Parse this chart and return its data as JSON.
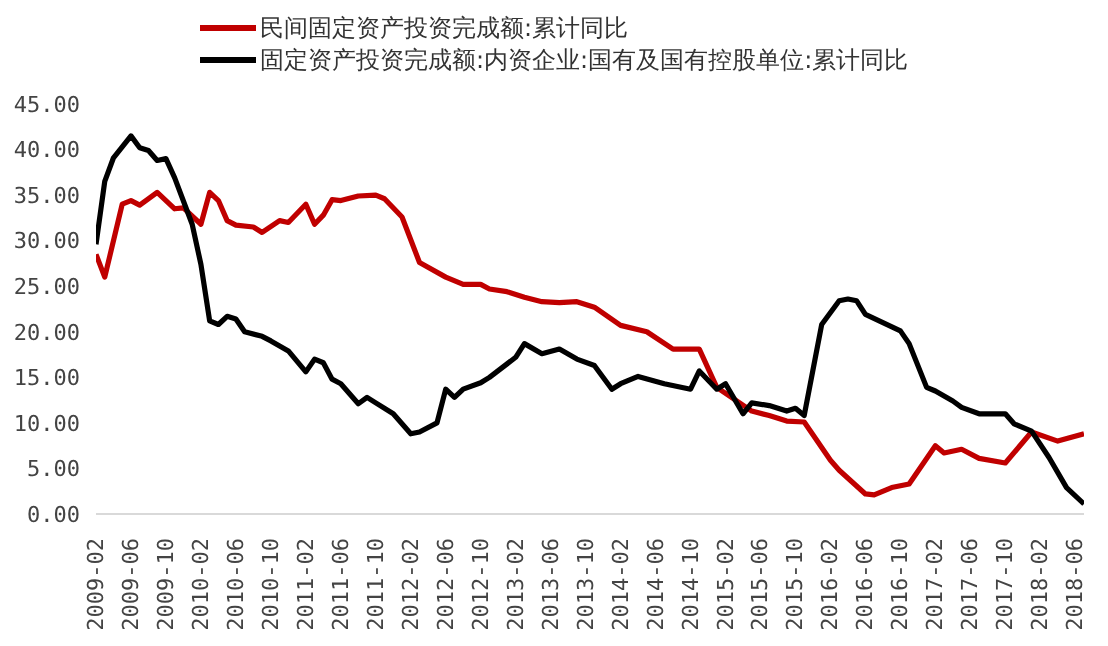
{
  "chart_data": {
    "type": "line",
    "legend": "top",
    "grid": false,
    "marker": "none",
    "line_style": "solid",
    "xlim": [
      "2009-02",
      "2018-07"
    ],
    "xticks": [
      "2009-02",
      "2009-06",
      "2009-10",
      "2010-02",
      "2010-06",
      "2010-10",
      "2011-02",
      "2011-06",
      "2011-10",
      "2012-02",
      "2012-06",
      "2012-10",
      "2013-02",
      "2013-06",
      "2013-10",
      "2014-02",
      "2014-06",
      "2014-10",
      "2015-02",
      "2015-06",
      "2015-10",
      "2016-02",
      "2016-06",
      "2016-10",
      "2017-02",
      "2017-06",
      "2017-10",
      "2018-02",
      "2018-06"
    ],
    "ylim": [
      0,
      45
    ],
    "yticks": [
      {
        "value": 0,
        "label": "0.00"
      },
      {
        "value": 5,
        "label": "5.00"
      },
      {
        "value": 10,
        "label": "10.00"
      },
      {
        "value": 15,
        "label": "15.00"
      },
      {
        "value": 20,
        "label": "20.00"
      },
      {
        "value": 25,
        "label": "25.00"
      },
      {
        "value": 30,
        "label": "30.00"
      },
      {
        "value": 35,
        "label": "35.00"
      },
      {
        "value": 40,
        "label": "40.00"
      },
      {
        "value": 45,
        "label": "45.00"
      }
    ],
    "series": [
      {
        "name": "民间固定资产投资完成额:累计同比",
        "color": "#c00000",
        "x": [
          "2009-02",
          "2009-03",
          "2009-05",
          "2009-06",
          "2009-07",
          "2009-09",
          "2009-11",
          "2009-12",
          "2010-02",
          "2010-03",
          "2010-04",
          "2010-05",
          "2010-06",
          "2010-08",
          "2010-09",
          "2010-11",
          "2010-12",
          "2011-02",
          "2011-03",
          "2011-04",
          "2011-05",
          "2011-06",
          "2011-08",
          "2011-10",
          "2011-11",
          "2012-01",
          "2012-03",
          "2012-06",
          "2012-08",
          "2012-10",
          "2012-11",
          "2013-01",
          "2013-03",
          "2013-05",
          "2013-07",
          "2013-09",
          "2013-11",
          "2014-02",
          "2014-05",
          "2014-08",
          "2014-11",
          "2015-01",
          "2015-05",
          "2015-07",
          "2015-09",
          "2015-11",
          "2016-02",
          "2016-03",
          "2016-06",
          "2016-07",
          "2016-09",
          "2016-11",
          "2017-02",
          "2017-03",
          "2017-05",
          "2017-07",
          "2017-10",
          "2018-01",
          "2018-04",
          "2018-07"
        ],
        "values": [
          28.5,
          26.0,
          34.0,
          34.4,
          33.9,
          35.3,
          33.5,
          33.6,
          31.8,
          35.3,
          34.4,
          32.2,
          31.7,
          31.5,
          30.9,
          32.2,
          32.0,
          34.0,
          31.8,
          32.8,
          34.5,
          34.4,
          34.9,
          35.0,
          34.6,
          32.6,
          27.6,
          26.0,
          25.2,
          25.2,
          24.7,
          24.4,
          23.8,
          23.3,
          23.2,
          23.3,
          22.7,
          20.7,
          20.0,
          18.1,
          18.1,
          13.9,
          11.3,
          10.8,
          10.2,
          10.1,
          5.9,
          4.8,
          2.2,
          2.1,
          2.9,
          3.3,
          7.5,
          6.7,
          7.1,
          6.1,
          5.6,
          9.0,
          8.0,
          8.8
        ]
      },
      {
        "name": "固定资产投资完成额:内资企业:国有及国有控股单位:累计同比",
        "color": "#000000",
        "x": [
          "2009-02",
          "2009-03",
          "2009-04",
          "2009-06",
          "2009-07",
          "2009-08",
          "2009-09",
          "2009-10",
          "2009-11",
          "2010-01",
          "2010-02",
          "2010-03",
          "2010-04",
          "2010-05",
          "2010-06",
          "2010-07",
          "2010-09",
          "2010-10",
          "2010-12",
          "2011-02",
          "2011-03",
          "2011-04",
          "2011-05",
          "2011-06",
          "2011-08",
          "2011-09",
          "2011-10",
          "2011-12",
          "2012-02",
          "2012-03",
          "2012-05",
          "2012-06",
          "2012-07",
          "2012-08",
          "2012-10",
          "2012-11",
          "2013-02",
          "2013-03",
          "2013-05",
          "2013-07",
          "2013-09",
          "2013-11",
          "2014-01",
          "2014-02",
          "2014-04",
          "2014-07",
          "2014-10",
          "2014-11",
          "2015-01",
          "2015-02",
          "2015-04",
          "2015-05",
          "2015-07",
          "2015-09",
          "2015-10",
          "2015-11",
          "2016-01",
          "2016-03",
          "2016-04",
          "2016-05",
          "2016-06",
          "2016-10",
          "2016-11",
          "2017-01",
          "2017-02",
          "2017-04",
          "2017-05",
          "2017-07",
          "2017-10",
          "2017-11",
          "2018-01",
          "2018-03",
          "2018-05",
          "2018-07"
        ],
        "values": [
          29.6,
          36.5,
          39.1,
          41.5,
          40.2,
          39.9,
          38.8,
          39.0,
          36.9,
          31.8,
          27.4,
          21.2,
          20.8,
          21.7,
          21.4,
          20.0,
          19.5,
          19.0,
          17.9,
          15.6,
          17.0,
          16.6,
          14.8,
          14.3,
          12.1,
          12.8,
          12.2,
          11.0,
          8.8,
          9.0,
          10.0,
          13.7,
          12.8,
          13.7,
          14.4,
          15.0,
          17.2,
          18.7,
          17.6,
          18.1,
          17.0,
          16.3,
          13.7,
          14.3,
          15.1,
          14.3,
          13.7,
          15.7,
          13.7,
          14.3,
          11.0,
          12.2,
          11.9,
          11.3,
          11.6,
          10.8,
          20.8,
          23.4,
          23.6,
          23.4,
          21.9,
          20.1,
          18.7,
          13.9,
          13.5,
          12.4,
          11.7,
          11.0,
          11.0,
          9.9,
          9.1,
          6.2,
          2.9,
          1.1
        ]
      }
    ]
  }
}
